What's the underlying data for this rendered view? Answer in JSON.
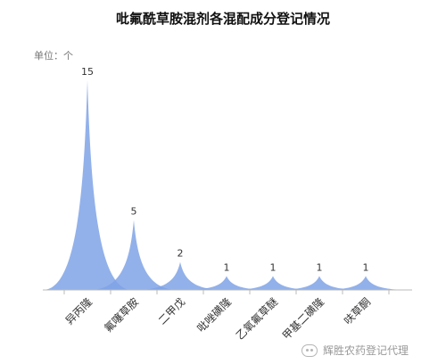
{
  "title": "吡氟酰草胺混剂各混配成分登记情况",
  "unit_label": "单位：个",
  "watermark": "辉胜农药登记代理",
  "colors": {
    "fill": "#7fa3e6",
    "stroke": "#5d86d8",
    "axis": "#bbbbbb",
    "label": "#333333"
  },
  "chart_data": {
    "type": "area",
    "style": "pictorial-peak",
    "title": "吡氟酰草胺混剂各混配成分登记情况",
    "ylabel": "单位：个",
    "categories": [
      "异丙隆",
      "氟噻草胺",
      "二甲戊",
      "吡唑磺隆",
      "乙氧氟草醚",
      "甲基二磺隆",
      "呋草酮"
    ],
    "values": [
      15,
      5,
      2,
      1,
      1,
      1,
      1
    ],
    "ylim": [
      0,
      15
    ],
    "grid": false,
    "legend": "none"
  }
}
